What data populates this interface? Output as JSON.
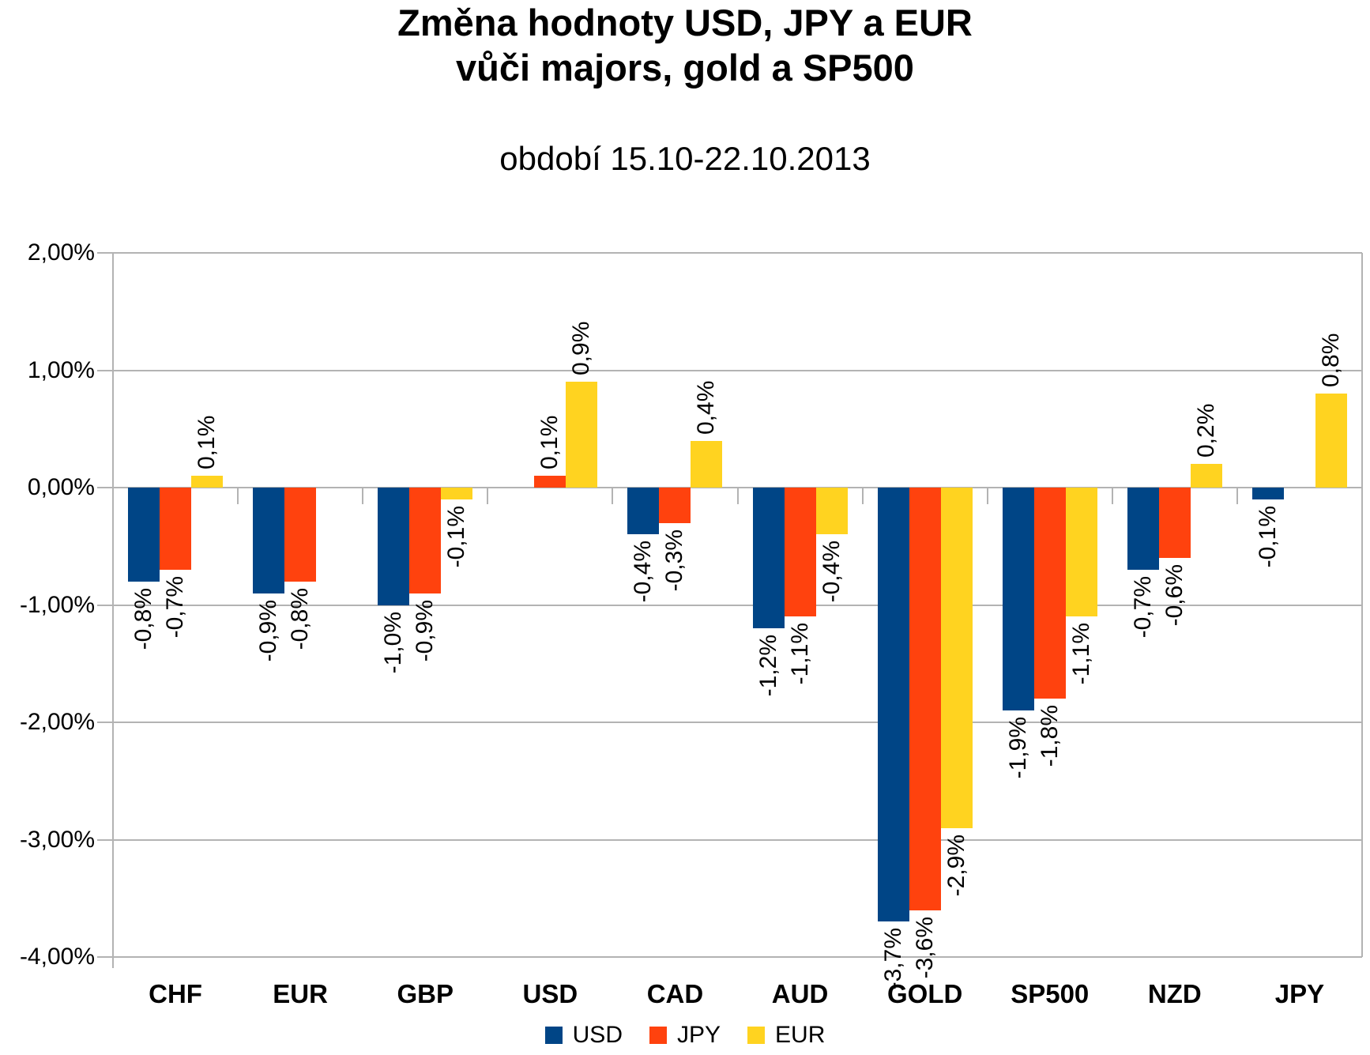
{
  "chart": {
    "title_line1": "Změna hodnoty USD, JPY a EUR",
    "title_line2": "vůči majors, gold a SP500",
    "subtitle": "období 15.10-22.10.2013"
  },
  "chart_data": {
    "type": "bar",
    "title": "Změna hodnoty USD, JPY a EUR vůči majors, gold a SP500",
    "subtitle": "období 15.10-22.10.2013",
    "categories": [
      "CHF",
      "EUR",
      "GBP",
      "USD",
      "CAD",
      "AUD",
      "GOLD",
      "SP500",
      "NZD",
      "JPY"
    ],
    "series": [
      {
        "name": "USD",
        "color": "#004586",
        "values": [
          -0.8,
          -0.9,
          -1.0,
          null,
          -0.4,
          -1.2,
          -3.7,
          -1.9,
          -0.7,
          -0.1
        ],
        "labels": [
          "-0,8%",
          "-0,9%",
          "-1,0%",
          "",
          "-0,4%",
          "-1,2%",
          "-3,7%",
          "-1,9%",
          "-0,7%",
          "-0,1%"
        ]
      },
      {
        "name": "JPY",
        "color": "#FF420E",
        "values": [
          -0.7,
          -0.8,
          -0.9,
          0.1,
          -0.3,
          -1.1,
          -3.6,
          -1.8,
          -0.6,
          null
        ],
        "labels": [
          "-0,7%",
          "-0,8%",
          "-0,9%",
          "0,1%",
          "-0,3%",
          "-1,1%",
          "-3,6%",
          "-1,8%",
          "-0,6%",
          ""
        ]
      },
      {
        "name": "EUR",
        "color": "#FFD320",
        "values": [
          0.1,
          null,
          -0.1,
          0.9,
          0.4,
          -0.4,
          -2.9,
          -1.1,
          0.2,
          0.8
        ],
        "labels": [
          "0,1%",
          "",
          "-0,1%",
          "0,9%",
          "0,4%",
          "-0,4%",
          "-2,9%",
          "-1,1%",
          "0,2%",
          "0,8%"
        ]
      }
    ],
    "y_axis": {
      "min": -4,
      "max": 2,
      "step": 1,
      "tick_labels": [
        "2,00%",
        "1,00%",
        "0,00%",
        "-1,00%",
        "-2,00%",
        "-3,00%",
        "-4,00%"
      ]
    },
    "ylim": [
      -4,
      2
    ],
    "grid": true,
    "legend_position": "bottom",
    "colors": {
      "grid": "#b3b3b3",
      "text": "#000000",
      "background": "#ffffff"
    }
  }
}
